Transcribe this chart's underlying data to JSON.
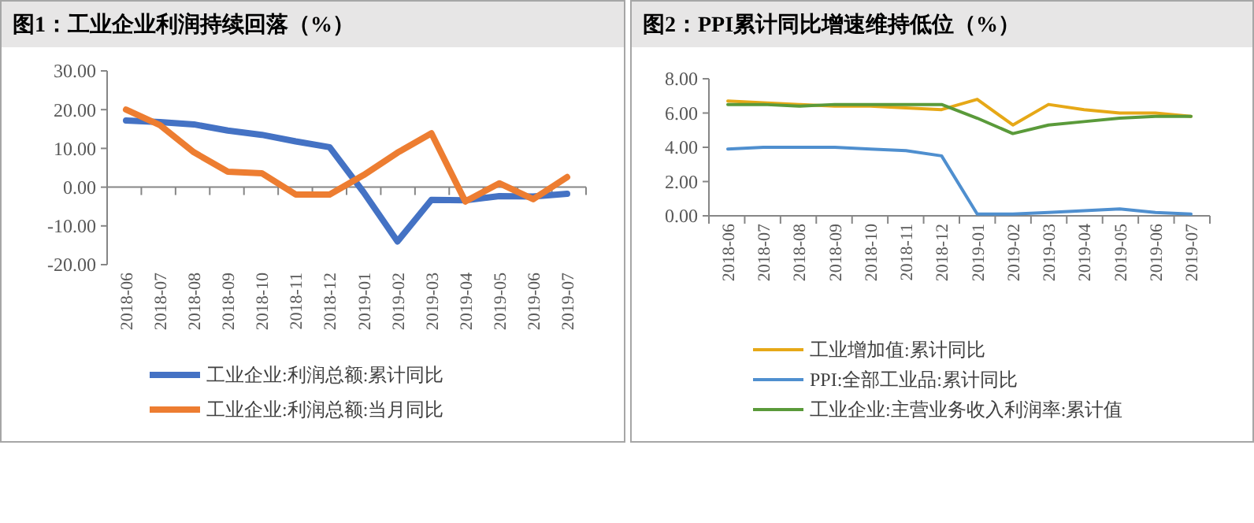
{
  "chart_data": [
    {
      "type": "line",
      "title": "图1：工业企业利润持续回落（%）",
      "categories": [
        "2018-06",
        "2018-07",
        "2018-08",
        "2018-09",
        "2018-10",
        "2018-11",
        "2018-12",
        "2019-01",
        "2019-02",
        "2019-03",
        "2019-04",
        "2019-05",
        "2019-06",
        "2019-07"
      ],
      "series": [
        {
          "name": "工业企业:利润总额:累计同比",
          "color": "#4472c4",
          "values": [
            17.2,
            16.8,
            16.2,
            14.6,
            13.5,
            11.8,
            10.3,
            -1.3,
            -14.0,
            -3.3,
            -3.4,
            -2.3,
            -2.4,
            -1.7
          ]
        },
        {
          "name": "工业企业:利润总额:当月同比",
          "color": "#ed7d31",
          "values": [
            20.0,
            16.0,
            9.0,
            4.0,
            3.6,
            -1.9,
            -1.9,
            3.1,
            8.9,
            13.9,
            -3.7,
            1.0,
            -3.1,
            2.6
          ]
        }
      ],
      "ylim": [
        -20,
        30
      ],
      "yticks": [
        {
          "value": -20,
          "label": "-20.00"
        },
        {
          "value": -10,
          "label": "-10.00"
        },
        {
          "value": 0,
          "label": "0.00"
        },
        {
          "value": 10,
          "label": "10.00"
        },
        {
          "value": 20,
          "label": "20.00"
        },
        {
          "value": 30,
          "label": "30.00"
        }
      ],
      "legend": "bottom"
    },
    {
      "type": "line",
      "title": "图2：PPI累计同比增速维持低位（%）",
      "categories": [
        "2018-06",
        "2018-07",
        "2018-08",
        "2018-09",
        "2018-10",
        "2018-11",
        "2018-12",
        "2019-01",
        "2019-02",
        "2019-03",
        "2019-04",
        "2019-05",
        "2019-06",
        "2019-07"
      ],
      "series": [
        {
          "name": "工业增加值:累计同比",
          "color": "#e6a817",
          "values": [
            6.7,
            6.6,
            6.5,
            6.4,
            6.4,
            6.3,
            6.2,
            6.8,
            5.3,
            6.5,
            6.2,
            6.0,
            6.0,
            5.8
          ]
        },
        {
          "name": "PPI:全部工业品:累计同比",
          "color": "#4f8fcf",
          "values": [
            3.9,
            4.0,
            4.0,
            4.0,
            3.9,
            3.8,
            3.5,
            0.1,
            0.1,
            0.2,
            0.3,
            0.4,
            0.2,
            0.1
          ]
        },
        {
          "name": "工业企业:主营业务收入利润率:累计值",
          "color": "#5a9a3a",
          "values": [
            6.5,
            6.5,
            6.4,
            6.5,
            6.5,
            6.5,
            6.5,
            5.7,
            4.8,
            5.3,
            5.5,
            5.7,
            5.8,
            5.8
          ]
        }
      ],
      "ylim": [
        0,
        8
      ],
      "yticks": [
        {
          "value": 0,
          "label": "0.00"
        },
        {
          "value": 2,
          "label": "2.00"
        },
        {
          "value": 4,
          "label": "4.00"
        },
        {
          "value": 6,
          "label": "6.00"
        },
        {
          "value": 8,
          "label": "8.00"
        }
      ],
      "legend": "bottom"
    }
  ]
}
